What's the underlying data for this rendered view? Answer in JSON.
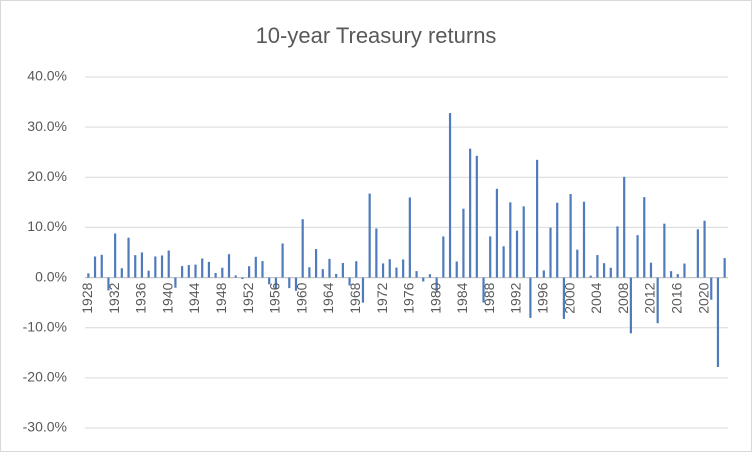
{
  "chart_data": {
    "type": "bar",
    "title": "10-year Treasury returns",
    "categories": [
      "1928",
      null,
      null,
      null,
      "1932",
      null,
      null,
      null,
      "1936",
      null,
      null,
      null,
      "1940",
      null,
      null,
      null,
      "1944",
      null,
      null,
      null,
      "1948",
      null,
      null,
      null,
      "1952",
      null,
      null,
      null,
      "1956",
      null,
      null,
      null,
      "1960",
      null,
      null,
      null,
      "1964",
      null,
      null,
      null,
      "1968",
      null,
      null,
      null,
      "1972",
      null,
      null,
      null,
      "1976",
      null,
      null,
      null,
      "1980",
      null,
      null,
      null,
      "1984",
      null,
      null,
      null,
      "1988",
      null,
      null,
      null,
      "1992",
      null,
      null,
      null,
      "1996",
      null,
      null,
      null,
      "2000",
      null,
      null,
      null,
      "2004",
      null,
      null,
      null,
      "2008",
      null,
      null,
      null,
      "2012",
      null,
      null,
      null,
      "2016",
      null,
      null,
      null,
      "2020",
      null,
      null,
      null
    ],
    "values": [
      0.84,
      4.2,
      4.54,
      -2.56,
      8.79,
      1.86,
      7.96,
      4.47,
      5.02,
      1.38,
      4.21,
      4.41,
      5.4,
      -2.02,
      2.29,
      2.49,
      2.58,
      3.8,
      3.13,
      0.92,
      1.95,
      4.66,
      0.43,
      -0.3,
      2.27,
      4.14,
      3.29,
      -1.34,
      -2.26,
      6.8,
      -2.1,
      -2.65,
      11.64,
      2.06,
      5.69,
      1.68,
      3.73,
      0.72,
      2.91,
      -1.58,
      3.27,
      -5.01,
      16.75,
      9.79,
      2.82,
      3.66,
      1.99,
      3.61,
      15.98,
      1.29,
      -0.78,
      0.67,
      -2.99,
      8.2,
      32.81,
      3.2,
      13.73,
      25.71,
      24.28,
      -4.96,
      8.22,
      17.69,
      6.24,
      15.0,
      9.36,
      14.21,
      -8.04,
      23.48,
      1.43,
      9.94,
      14.92,
      -8.25,
      16.66,
      5.57,
      15.12,
      0.38,
      4.49,
      2.87,
      1.96,
      10.21,
      20.1,
      -11.12,
      8.46,
      16.04,
      2.97,
      -9.1,
      10.75,
      1.28,
      0.69,
      2.8,
      -0.02,
      9.64,
      11.33,
      -4.42,
      -17.83,
      3.88
    ],
    "color": "#4f7bbd",
    "ylim": [
      -30,
      40
    ],
    "yticks": [
      {
        "value": -30,
        "label": "-30.0%"
      },
      {
        "value": -20,
        "label": "-20.0%"
      },
      {
        "value": -10,
        "label": "-10.0%"
      },
      {
        "value": 0,
        "label": "0.0%"
      },
      {
        "value": 10,
        "label": "10.0%"
      },
      {
        "value": 20,
        "label": "20.0%"
      },
      {
        "value": 30,
        "label": "30.0%"
      },
      {
        "value": 40,
        "label": "40.0%"
      }
    ],
    "grid": true
  }
}
